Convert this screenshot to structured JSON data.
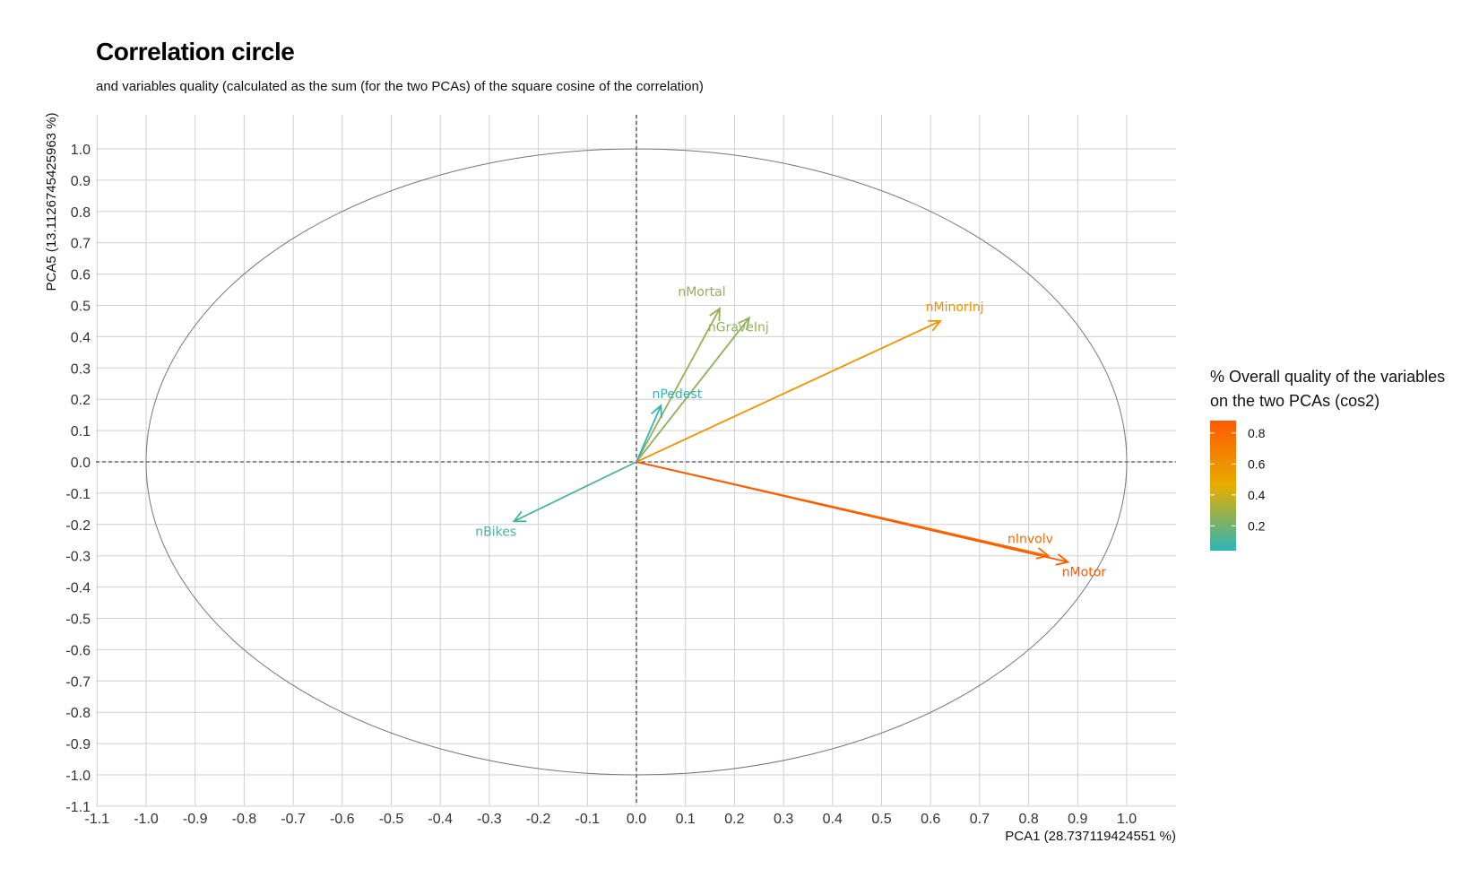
{
  "chart_data": {
    "type": "scatter",
    "title": "Correlation circle",
    "subtitle": "and variables quality (calculated as the sum (for the two PCAs) of the square cosine of the correlation)",
    "xlabel": "PCA1 (28.737119424551 %)",
    "ylabel": "PCA5 (13.1126745425963 %)",
    "xlim": [
      -1.1,
      1.1
    ],
    "ylim": [
      -1.1,
      1.1
    ],
    "x_ticks": [
      "-1.1",
      "-1.0",
      "-0.9",
      "-0.8",
      "-0.7",
      "-0.6",
      "-0.5",
      "-0.4",
      "-0.3",
      "-0.2",
      "-0.1",
      "0.0",
      "0.1",
      "0.2",
      "0.3",
      "0.4",
      "0.5",
      "0.6",
      "0.7",
      "0.8",
      "0.9",
      "1.0"
    ],
    "y_ticks": [
      "-1.1",
      "-1.0",
      "-0.9",
      "-0.8",
      "-0.7",
      "-0.6",
      "-0.5",
      "-0.4",
      "-0.3",
      "-0.2",
      "-0.1",
      "0.0",
      "0.1",
      "0.2",
      "0.3",
      "0.4",
      "0.5",
      "0.6",
      "0.7",
      "0.8",
      "0.9",
      "1.0"
    ],
    "grid": true,
    "unit_circle": true,
    "reference_lines": "dashed at x=0 and y=0",
    "variables": [
      {
        "name": "nMortal",
        "x": 0.17,
        "y": 0.49,
        "cos2": 0.27
      },
      {
        "name": "nGraveInj",
        "x": 0.23,
        "y": 0.46,
        "cos2": 0.26
      },
      {
        "name": "nMinorInj",
        "x": 0.62,
        "y": 0.45,
        "cos2": 0.59
      },
      {
        "name": "nPedest",
        "x": 0.05,
        "y": 0.18,
        "cos2": 0.04
      },
      {
        "name": "nBikes",
        "x": -0.25,
        "y": -0.19,
        "cos2": 0.1
      },
      {
        "name": "nInvolv",
        "x": 0.84,
        "y": -0.3,
        "cos2": 0.8
      },
      {
        "name": "nMotor",
        "x": 0.88,
        "y": -0.32,
        "cos2": 0.88
      }
    ],
    "legend": {
      "title_line1": "% Overall quality of the variables",
      "title_line2": "on the two PCAs (cos2)",
      "placement": "right",
      "ticks": [
        "0.2",
        "0.4",
        "0.6",
        "0.8"
      ],
      "tick_values": [
        0.2,
        0.4,
        0.6,
        0.8
      ],
      "range": [
        0.04,
        0.88
      ],
      "colors": {
        "low": "#2eb5b8",
        "mid": "#e6ad00",
        "high": "#ff5a00"
      }
    }
  }
}
